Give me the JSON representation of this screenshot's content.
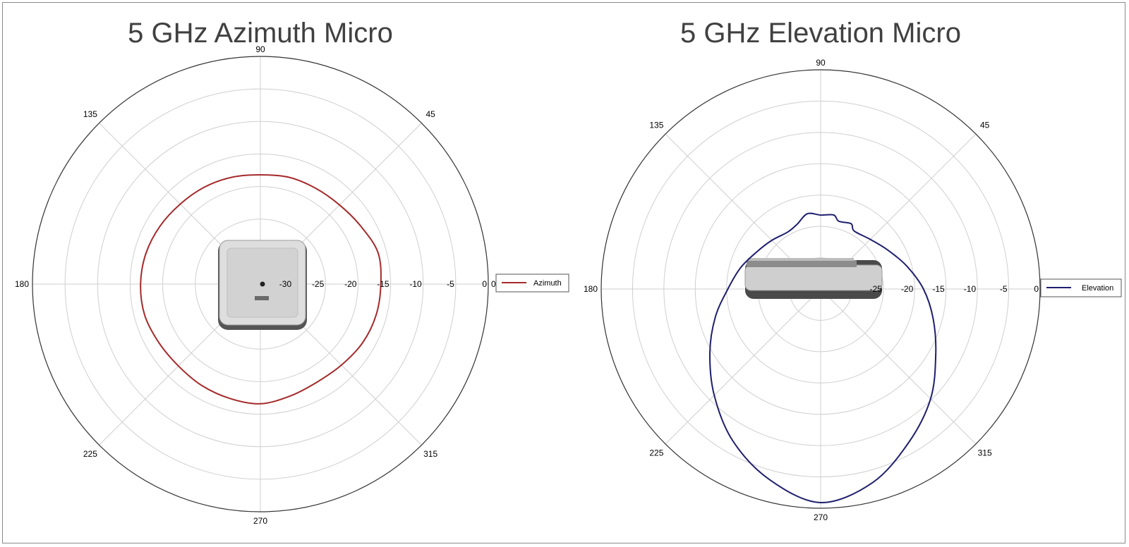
{
  "chart_data": [
    {
      "type": "polar-line",
      "title": "5 GHz Azimuth Micro",
      "angle_labels": [
        "90",
        "45",
        "0",
        "315",
        "270",
        "225",
        "180",
        "135"
      ],
      "radial_tick_labels": [
        "-30",
        "-25",
        "-20",
        "-15",
        "-10",
        "-5",
        "0"
      ],
      "radial_range_db": [
        -35,
        0
      ],
      "legend": [
        "Azimuth"
      ],
      "series": [
        {
          "name": "Azimuth",
          "color": "#a52a2a",
          "angles_deg": [
            0,
            15,
            30,
            45,
            60,
            75,
            90,
            105,
            120,
            135,
            150,
            165,
            180,
            195,
            210,
            225,
            240,
            255,
            270,
            285,
            300,
            315,
            330,
            345
          ],
          "gain_db": [
            -16.5,
            -16.3,
            -17.2,
            -17.8,
            -18.0,
            -18.0,
            -18.2,
            -18.0,
            -17.8,
            -17.6,
            -17.2,
            -16.8,
            -16.6,
            -16.6,
            -17.0,
            -17.2,
            -17.0,
            -16.8,
            -16.6,
            -17.2,
            -17.6,
            -17.4,
            -16.9,
            -16.6
          ]
        }
      ],
      "center_image": "access-point-top-view-icon"
    },
    {
      "type": "polar-line",
      "title": "5 GHz Elevation Micro",
      "angle_labels": [
        "90",
        "45",
        "0",
        "315",
        "270",
        "225",
        "180",
        "135"
      ],
      "radial_tick_labels": [
        "-25",
        "-20",
        "-15",
        "-10",
        "-5",
        "0"
      ],
      "radial_range_db": [
        -35,
        0
      ],
      "legend": [
        "Elevation"
      ],
      "series": [
        {
          "name": "Elevation",
          "color": "#1f1f6e",
          "angles_deg": [
            0,
            15,
            30,
            45,
            60,
            65,
            75,
            80,
            90,
            100,
            110,
            120,
            135,
            150,
            165,
            180,
            195,
            210,
            225,
            240,
            255,
            270,
            285,
            300,
            315,
            330,
            345
          ],
          "gain_db": [
            -18.6,
            -20.8,
            -22.6,
            -23.8,
            -24.3,
            -23.5,
            -23.8,
            -23.0,
            -23.2,
            -22.8,
            -24.0,
            -24.5,
            -24.0,
            -23.2,
            -21.8,
            -20.2,
            -17.6,
            -14.6,
            -11.0,
            -7.0,
            -3.5,
            -0.9,
            -3.0,
            -6.8,
            -10.2,
            -13.8,
            -16.4
          ]
        }
      ],
      "center_image": "access-point-side-view-icon"
    }
  ]
}
